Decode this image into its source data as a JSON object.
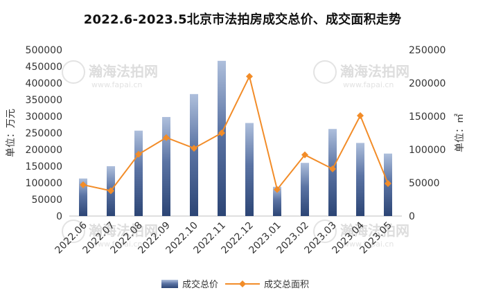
{
  "chart_data": {
    "type": "bar",
    "title": "2022.6-2023.5北京市法拍房成交总价、成交面积走势",
    "ylabel": "单位：万元",
    "y2label": "单位：㎡",
    "ylim": [
      0,
      500000
    ],
    "y2lim": [
      0,
      250000
    ],
    "yticks": [
      "0",
      "50000",
      "100000",
      "150000",
      "200000",
      "250000",
      "300000",
      "350000",
      "400000",
      "450000",
      "500000"
    ],
    "y2ticks": [
      "0",
      "50000",
      "100000",
      "150000",
      "200000",
      "250000"
    ],
    "categories": [
      "2022.06",
      "2022.07",
      "2022.08",
      "2022.09",
      "2022.10",
      "2022.11",
      "2022.12",
      "2023.01",
      "2023.02",
      "2023.03",
      "2023.04",
      "2023.05"
    ],
    "series": [
      {
        "name": "成交总价",
        "type": "bar",
        "axis": "left",
        "color": "#3d5a8a",
        "values": [
          113000,
          150000,
          257000,
          298000,
          367000,
          467000,
          280000,
          88000,
          160000,
          262000,
          220000,
          188000
        ]
      },
      {
        "name": "成交总面积",
        "type": "line",
        "axis": "right",
        "color": "#f28c28",
        "values": [
          47000,
          38000,
          93000,
          118000,
          102000,
          125000,
          210000,
          40000,
          92000,
          71000,
          151000,
          49000
        ]
      }
    ],
    "grid": false,
    "legend": "bottom"
  },
  "watermark": {
    "brand": "瀚海法拍网",
    "url": "www.fapai.cn"
  }
}
